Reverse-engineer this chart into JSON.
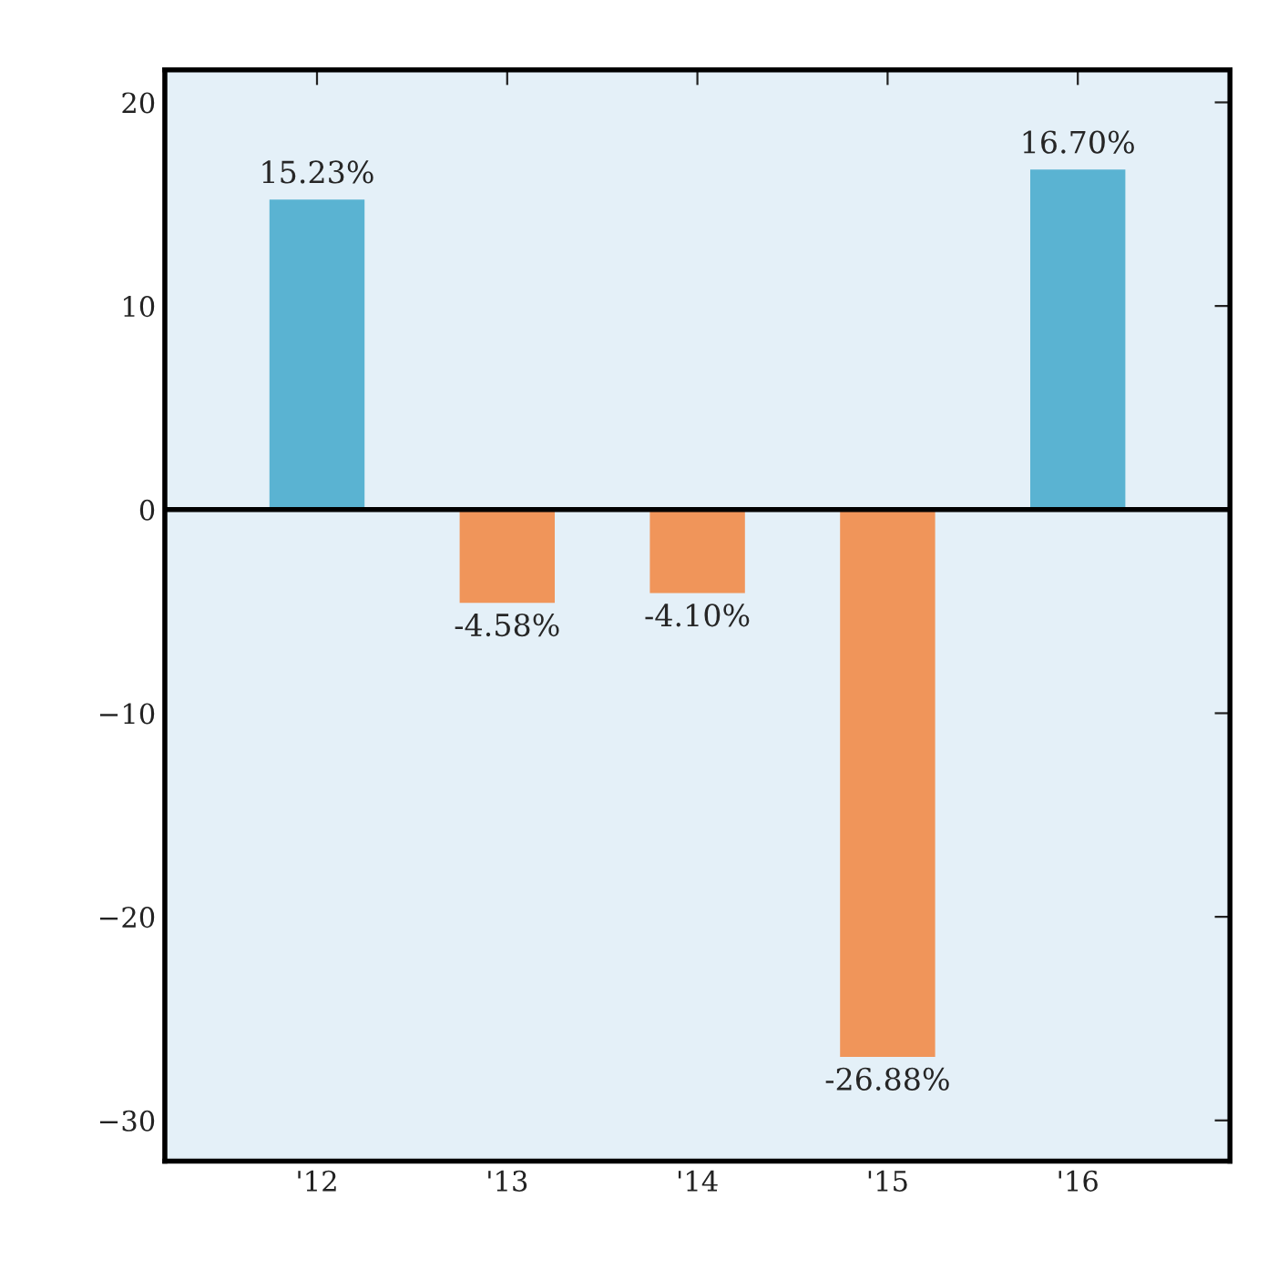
{
  "chart_data": {
    "type": "bar",
    "categories": [
      "'12",
      "'13",
      "'14",
      "'15",
      "'16"
    ],
    "values": [
      15.23,
      -4.58,
      -4.1,
      -26.88,
      16.7
    ],
    "colors": [
      "#5ab3d2",
      "#f0955a",
      "#f0955a",
      "#f0955a",
      "#5ab3d2"
    ],
    "value_labels": [
      "15.23%",
      "-4.58%",
      "-4.10%",
      "-26.88%",
      "16.70%"
    ],
    "ylim": [
      -32,
      21.6
    ],
    "yticks": [
      {
        "value": -30,
        "label": "−30"
      },
      {
        "value": -20,
        "label": "−20"
      },
      {
        "value": -10,
        "label": "−10"
      },
      0,
      10,
      20
    ],
    "ref_lines": [
      {
        "axis": "y",
        "value": 0,
        "color": "#000000"
      }
    ],
    "grid": false,
    "legend": false
  }
}
